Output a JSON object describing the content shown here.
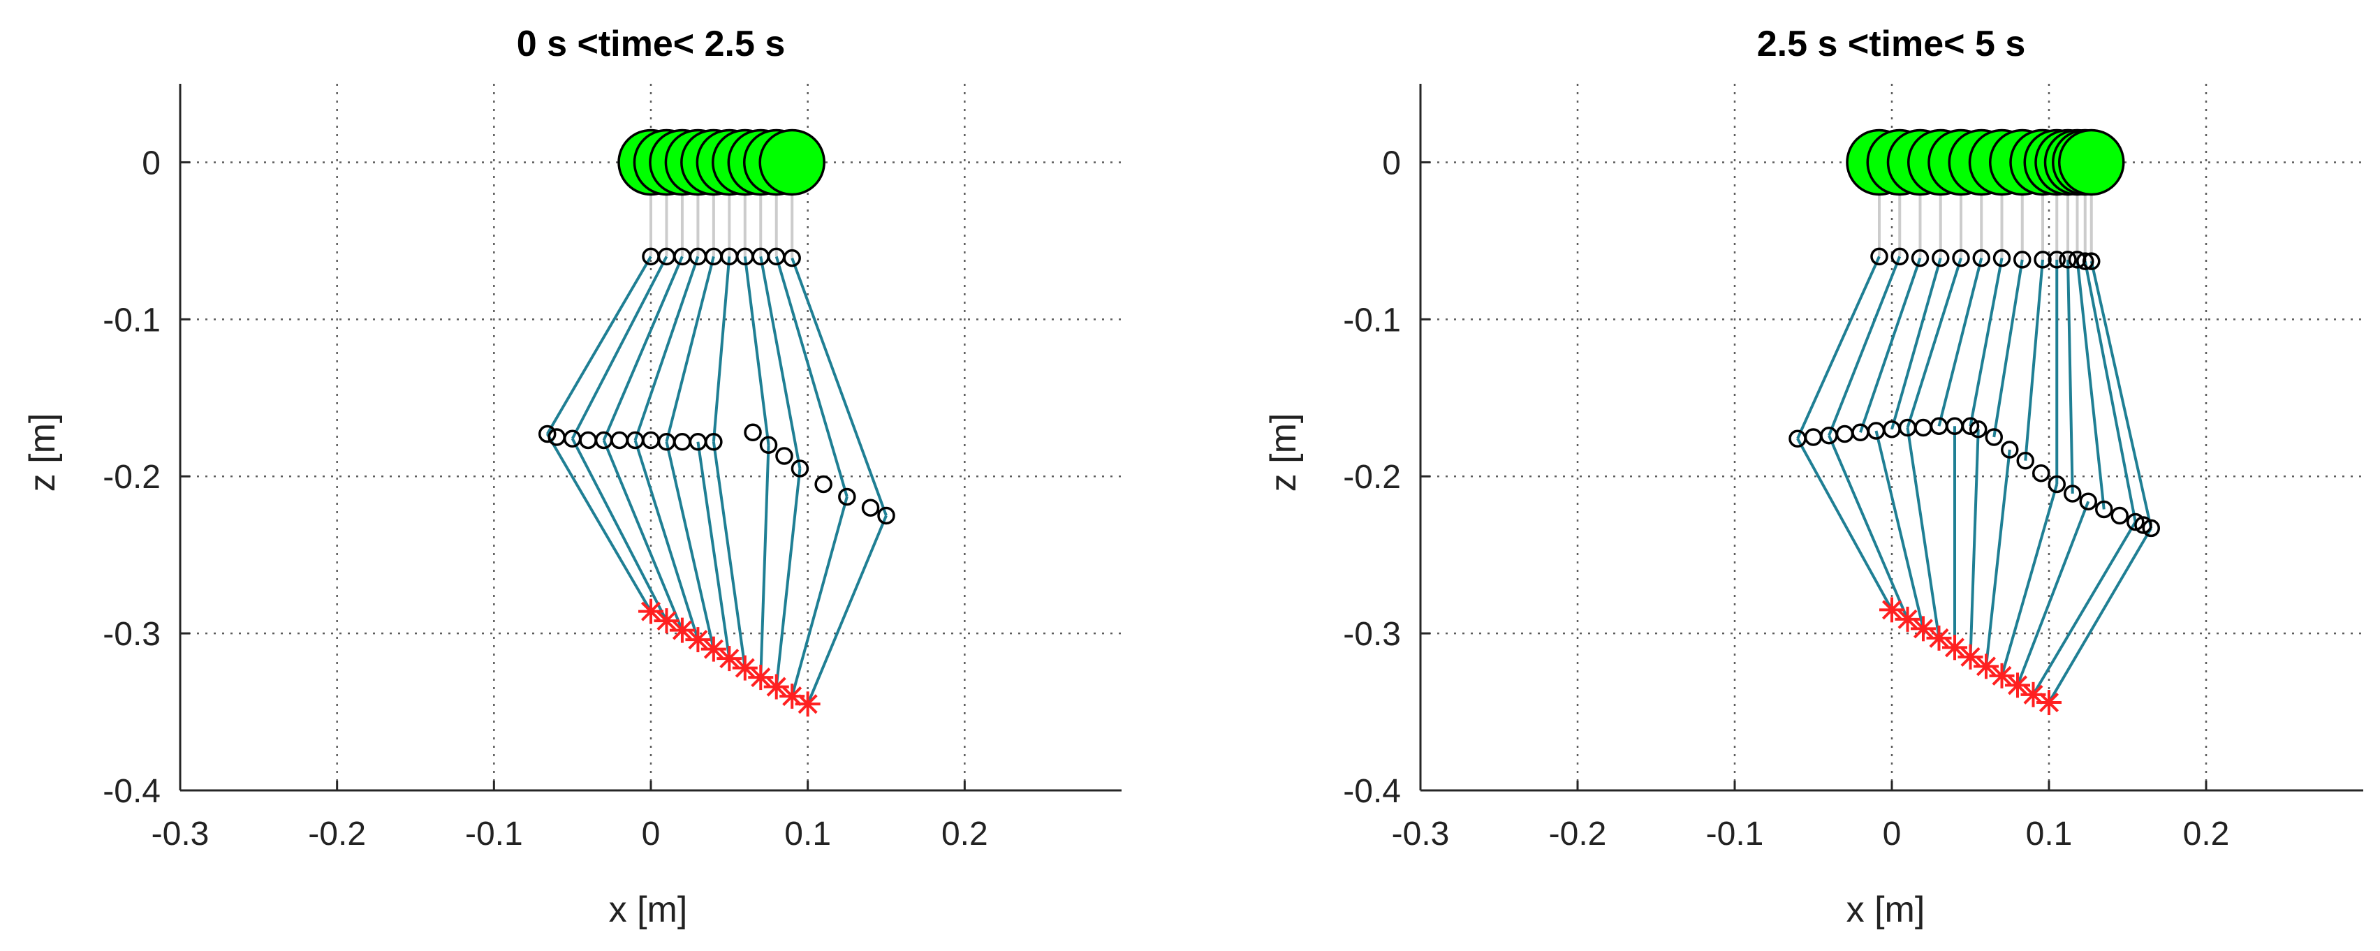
{
  "chart_data": [
    {
      "type": "line",
      "title": "0 s <time< 2.5 s",
      "xlabel": "x [m]",
      "ylabel": "z [m]",
      "xlim": [
        -0.3,
        0.3
      ],
      "ylim": [
        -0.4,
        0.05
      ],
      "xticks": [
        -0.3,
        -0.2,
        -0.1,
        0,
        0.1,
        0.2
      ],
      "xtick_labels": [
        "-0.3",
        "-0.2",
        "-0.1",
        "0",
        "0.1",
        "0.2"
      ],
      "yticks": [
        0,
        -0.1,
        -0.2,
        -0.3,
        -0.4
      ],
      "ytick_labels": [
        "0",
        "-0.1",
        "-0.2",
        "-0.3",
        "-0.4"
      ],
      "grid": true,
      "colors": {
        "hip": "#00ff00",
        "thigh": "#cccccc",
        "shank": "#1f7f94",
        "foot": "#ff2020",
        "joint_edge": "#000000"
      },
      "series": [
        {
          "x": [
            0,
            0.01,
            0.02,
            0.03,
            0.04,
            0.05,
            0.06,
            0.07,
            0.08,
            0.09
          ],
          "z": [
            0,
            0,
            0,
            0,
            0,
            0,
            0,
            0,
            0,
            0
          ]
        },
        {
          "x": [
            0,
            0.01,
            0.02,
            0.03,
            0.04,
            0.05,
            0.06,
            0.07,
            0.08,
            0.09
          ],
          "z": [
            -0.06,
            -0.06,
            -0.06,
            -0.06,
            -0.06,
            -0.06,
            -0.06,
            -0.06,
            -0.06,
            -0.061
          ]
        },
        {
          "x": [
            -0.066,
            -0.06,
            -0.05,
            -0.04,
            -0.03,
            -0.02,
            -0.01,
            0,
            0.01,
            0.02,
            0.03,
            0.04,
            0.065,
            0.075,
            0.085,
            0.095,
            0.11,
            0.125,
            0.14,
            0.15
          ],
          "z": [
            -0.173,
            -0.175,
            -0.176,
            -0.177,
            -0.177,
            -0.177,
            -0.177,
            -0.177,
            -0.178,
            -0.178,
            -0.178,
            -0.178,
            -0.172,
            -0.18,
            -0.187,
            -0.195,
            -0.205,
            -0.213,
            -0.22,
            -0.225
          ]
        },
        {
          "x": [
            0,
            0.01,
            0.02,
            0.03,
            0.04,
            0.05,
            0.06,
            0.07,
            0.08,
            0.09,
            0.1
          ],
          "z": [
            -0.286,
            -0.292,
            -0.298,
            -0.304,
            -0.31,
            -0.316,
            -0.322,
            -0.328,
            -0.334,
            -0.34,
            -0.345
          ]
        }
      ]
    },
    {
      "type": "line",
      "title": "2.5 s <time< 5 s",
      "xlabel": "x [m]",
      "ylabel": "z [m]",
      "xlim": [
        -0.3,
        0.3
      ],
      "ylim": [
        -0.4,
        0.05
      ],
      "xticks": [
        -0.3,
        -0.2,
        -0.1,
        0,
        0.1,
        0.2
      ],
      "xtick_labels": [
        "-0.3",
        "-0.2",
        "-0.1",
        "0",
        "0.1",
        "0.2"
      ],
      "yticks": [
        0,
        -0.1,
        -0.2,
        -0.3,
        -0.4
      ],
      "ytick_labels": [
        "0",
        "-0.1",
        "-0.2",
        "-0.3",
        "-0.4"
      ],
      "grid": true,
      "colors": {
        "hip": "#00ff00",
        "thigh": "#cccccc",
        "shank": "#1f7f94",
        "foot": "#ff2020",
        "joint_edge": "#000000"
      },
      "series": [
        {
          "x": [
            -0.008,
            0.005,
            0.018,
            0.031,
            0.044,
            0.057,
            0.07,
            0.083,
            0.096,
            0.105,
            0.112,
            0.118,
            0.123,
            0.127
          ],
          "z": [
            0,
            0,
            0,
            0,
            0,
            0,
            0,
            0,
            0,
            0,
            0,
            0,
            0,
            0
          ]
        },
        {
          "x": [
            -0.008,
            0.005,
            0.018,
            0.031,
            0.044,
            0.057,
            0.07,
            0.083,
            0.096,
            0.105,
            0.112,
            0.118,
            0.123,
            0.127
          ],
          "z": [
            -0.06,
            -0.06,
            -0.061,
            -0.061,
            -0.061,
            -0.061,
            -0.061,
            -0.062,
            -0.062,
            -0.062,
            -0.062,
            -0.062,
            -0.063,
            -0.063
          ]
        },
        {
          "x": [
            -0.06,
            -0.05,
            -0.04,
            -0.03,
            -0.02,
            -0.01,
            0,
            0.01,
            0.02,
            0.03,
            0.04,
            0.05,
            0.055,
            0.065,
            0.075,
            0.085,
            0.095,
            0.105,
            0.115,
            0.125,
            0.135,
            0.145,
            0.155,
            0.16,
            0.165
          ],
          "z": [
            -0.176,
            -0.175,
            -0.174,
            -0.173,
            -0.172,
            -0.171,
            -0.17,
            -0.169,
            -0.169,
            -0.168,
            -0.168,
            -0.168,
            -0.17,
            -0.175,
            -0.183,
            -0.19,
            -0.198,
            -0.205,
            -0.211,
            -0.216,
            -0.221,
            -0.225,
            -0.229,
            -0.231,
            -0.233
          ]
        },
        {
          "x": [
            0,
            0.01,
            0.02,
            0.03,
            0.04,
            0.05,
            0.06,
            0.07,
            0.08,
            0.09,
            0.1
          ],
          "z": [
            -0.285,
            -0.291,
            -0.297,
            -0.303,
            -0.309,
            -0.315,
            -0.321,
            -0.327,
            -0.333,
            -0.339,
            -0.344
          ]
        }
      ]
    }
  ]
}
